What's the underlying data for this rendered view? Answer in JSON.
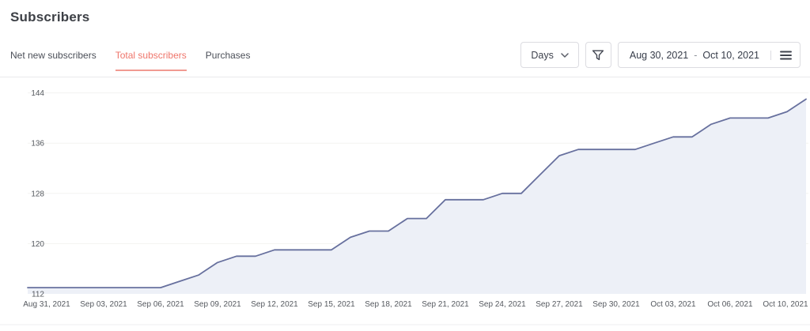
{
  "page": {
    "title": "Subscribers"
  },
  "tabs": [
    {
      "label": "Net new subscribers",
      "active": false
    },
    {
      "label": "Total subscribers",
      "active": true
    },
    {
      "label": "Purchases",
      "active": false
    }
  ],
  "controls": {
    "interval_label": "Days",
    "icons": [
      "chevron-down-icon",
      "filter-funnel-icon",
      "menu-icon"
    ],
    "date_range": {
      "start": "Aug 30, 2021",
      "separator": "-",
      "end": "Oct 10, 2021"
    }
  },
  "colors": {
    "accent_active_tab": "#ef756b",
    "tab_underline": "#f19a92",
    "line": "#67709e",
    "fill": "#edf0f7",
    "gridline": "#f3f3f1",
    "axis_text": "#55595f"
  },
  "chart_data": {
    "type": "area",
    "title": "Subscribers",
    "series_name": "Total subscribers",
    "x": [
      "Aug 30",
      "Aug 31",
      "Sep 01",
      "Sep 02",
      "Sep 03",
      "Sep 04",
      "Sep 05",
      "Sep 06",
      "Sep 07",
      "Sep 08",
      "Sep 09",
      "Sep 10",
      "Sep 11",
      "Sep 12",
      "Sep 13",
      "Sep 14",
      "Sep 15",
      "Sep 16",
      "Sep 17",
      "Sep 18",
      "Sep 19",
      "Sep 20",
      "Sep 21",
      "Sep 22",
      "Sep 23",
      "Sep 24",
      "Sep 25",
      "Sep 26",
      "Sep 27",
      "Sep 28",
      "Sep 29",
      "Sep 30",
      "Oct 01",
      "Oct 02",
      "Oct 03",
      "Oct 04",
      "Oct 05",
      "Oct 06",
      "Oct 07",
      "Oct 08",
      "Oct 09",
      "Oct 10"
    ],
    "values": [
      113,
      113,
      113,
      113,
      113,
      113,
      113,
      113,
      114,
      115,
      117,
      118,
      118,
      119,
      119,
      119,
      119,
      121,
      122,
      122,
      124,
      124,
      127,
      127,
      127,
      128,
      128,
      131,
      134,
      135,
      135,
      135,
      135,
      136,
      137,
      137,
      139,
      140,
      140,
      140,
      141,
      143
    ],
    "ylim": [
      112,
      145
    ],
    "yticks": [
      112,
      120,
      128,
      136,
      144
    ],
    "xticks": [
      {
        "label": "Aug 31, 2021",
        "day": 1
      },
      {
        "label": "Sep 03, 2021",
        "day": 4
      },
      {
        "label": "Sep 06, 2021",
        "day": 7
      },
      {
        "label": "Sep 09, 2021",
        "day": 10
      },
      {
        "label": "Sep 12, 2021",
        "day": 13
      },
      {
        "label": "Sep 15, 2021",
        "day": 16
      },
      {
        "label": "Sep 18, 2021",
        "day": 19
      },
      {
        "label": "Sep 21, 2021",
        "day": 22
      },
      {
        "label": "Sep 24, 2021",
        "day": 25
      },
      {
        "label": "Sep 27, 2021",
        "day": 28
      },
      {
        "label": "Sep 30, 2021",
        "day": 31
      },
      {
        "label": "Oct 03, 2021",
        "day": 34
      },
      {
        "label": "Oct 06, 2021",
        "day": 37
      },
      {
        "label": "Oct 10, 2021",
        "day": 41
      }
    ],
    "grid": true,
    "legend": "none"
  }
}
